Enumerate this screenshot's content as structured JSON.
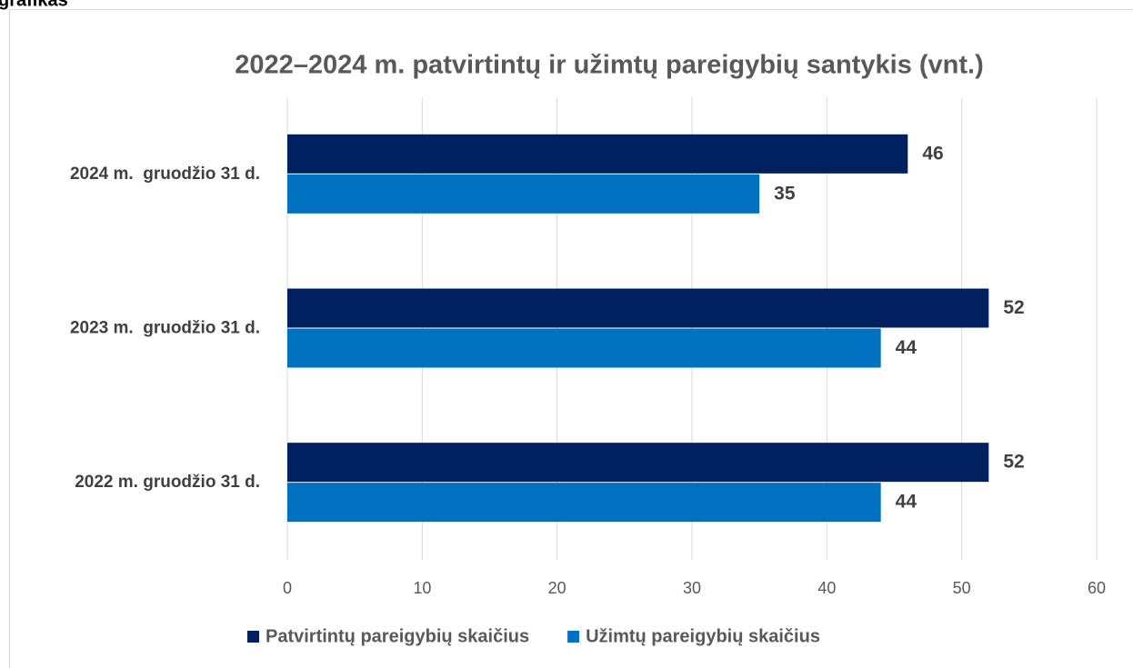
{
  "caption": "grafikas",
  "chart_data": {
    "type": "hbar",
    "title": "2022–2024 m. patvirtintų ir užimtų pareigybių santykis (vnt.)",
    "categories": [
      "2024 m.  gruodžio 31 d.",
      "2023 m.  gruodžio 31 d.",
      "2022 m. gruodžio 31 d."
    ],
    "series": [
      {
        "name": "Patvirtintų pareigybių skaičius",
        "color": "#002060",
        "values": [
          46,
          52,
          52
        ]
      },
      {
        "name": "Užimtų pareigybių skaičius",
        "color": "#0070c0",
        "values": [
          35,
          44,
          44
        ]
      }
    ],
    "xlim": [
      0,
      60
    ],
    "xticks": [
      0,
      10,
      20,
      30,
      40,
      50,
      60
    ],
    "grid": true,
    "legend": "bottom"
  }
}
